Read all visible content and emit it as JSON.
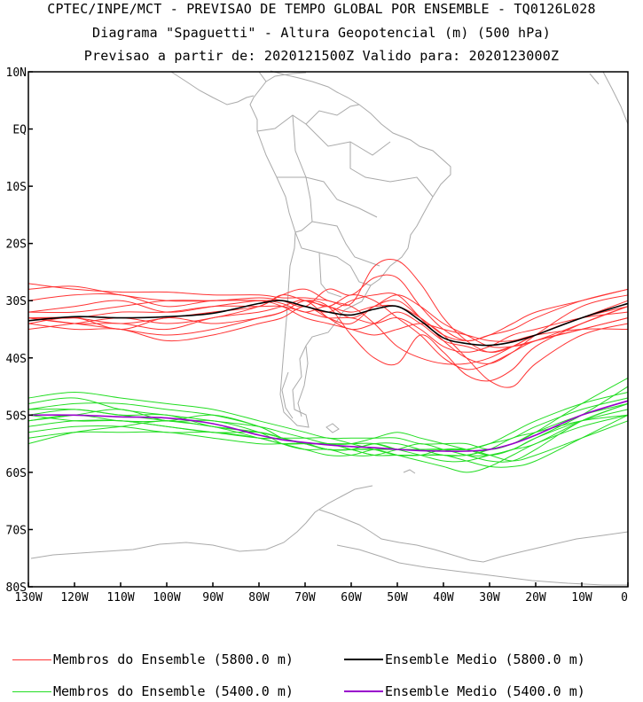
{
  "titles": {
    "line1": "CPTEC/INPE/MCT - PREVISAO DE TEMPO GLOBAL POR ENSEMBLE - TQ0126L028",
    "line2": "Diagrama \"Spaguetti\" - Altura Geopotencial (m) (500 hPa)",
    "line3": "Previsao a partir de: 2020121500Z  Valido para: 2020123000Z"
  },
  "axes": {
    "lon_labels": [
      "130W",
      "120W",
      "110W",
      "100W",
      "90W",
      "80W",
      "70W",
      "60W",
      "50W",
      "40W",
      "30W",
      "20W",
      "10W",
      "0"
    ],
    "lat_labels": [
      "10N",
      "EQ",
      "10S",
      "20S",
      "30S",
      "40S",
      "50S",
      "60S",
      "70S",
      "80S"
    ],
    "lon_range": [
      -130,
      0
    ],
    "lat_range": [
      -80,
      10
    ]
  },
  "colors": {
    "members_5800": "#ff3333",
    "mean_5800": "#000000",
    "members_5400": "#22dd22",
    "mean_5400": "#9900cc",
    "coast": "#aaaaaa"
  },
  "legend": {
    "members_5800": "Membros do Ensemble (5800.0 m)",
    "mean_5800": "Ensemble Medio (5800.0 m)",
    "members_5400": "Membros do Ensemble (5400.0 m)",
    "mean_5400": "Ensemble Medio (5400.0 m)"
  },
  "chart_data": {
    "type": "line",
    "lon_points": [
      -130,
      -120,
      -110,
      -100,
      -90,
      -80,
      -75,
      -70,
      -65,
      -60,
      -55,
      -50,
      -45,
      -40,
      -35,
      -30,
      -25,
      -20,
      -10,
      0
    ],
    "mean_5800": [
      -33.5,
      -32.8,
      -33,
      -32.8,
      -32.2,
      -30.5,
      -30,
      -31,
      -32,
      -32.5,
      -31.5,
      -31,
      -33.5,
      -36.5,
      -37.5,
      -37.8,
      -37.2,
      -36,
      -33,
      -30.5
    ],
    "mean_5400": [
      -50,
      -50,
      -50.3,
      -50.5,
      -51.5,
      -53.5,
      -54.3,
      -54.8,
      -55.2,
      -55.5,
      -55.7,
      -56,
      -56.2,
      -56.3,
      -56.3,
      -56,
      -55,
      -53.5,
      -50,
      -47.5
    ],
    "members_5800": [
      [
        -27,
        -28,
        -28.5,
        -28.5,
        -29,
        -29,
        -29.5,
        -29.5,
        -30,
        -30.5,
        -24,
        -23,
        -27,
        -33,
        -37,
        -39,
        -38,
        -36,
        -33,
        -30
      ],
      [
        -28,
        -27.5,
        -29,
        -30,
        -30,
        -29.5,
        -30,
        -31,
        -28,
        -29,
        -26,
        -26,
        -31,
        -35,
        -37,
        -36,
        -35,
        -33,
        -30,
        -28
      ],
      [
        -30,
        -29,
        -29,
        -31,
        -30,
        -30,
        -30,
        -31,
        -32,
        -30,
        -29,
        -29,
        -33,
        -37,
        -40,
        -41,
        -39,
        -36,
        -31,
        -29
      ],
      [
        -32,
        -31,
        -30,
        -32,
        -31,
        -30,
        -30.5,
        -32,
        -31,
        -33,
        -31,
        -29,
        -31,
        -34,
        -36,
        -38,
        -38,
        -37,
        -34,
        -31
      ],
      [
        -33,
        -33,
        -32,
        -32,
        -31,
        -31,
        -31,
        -32,
        -33,
        -33,
        -34,
        -33,
        -35,
        -38,
        -39,
        -38,
        -36,
        -35,
        -33,
        -32
      ],
      [
        -33,
        -34,
        -34,
        -35,
        -33,
        -32,
        -31,
        -30,
        -33,
        -35,
        -34,
        -32,
        -34,
        -37,
        -38,
        -39,
        -38,
        -37,
        -35,
        -33
      ],
      [
        -34,
        -33,
        -35,
        -33,
        -34,
        -33,
        -32,
        -30,
        -31,
        -36,
        -40,
        -41,
        -36,
        -39,
        -43,
        -44,
        -42,
        -38,
        -34,
        -31
      ],
      [
        -35,
        -34,
        -33,
        -34,
        -33,
        -31,
        -29,
        -28,
        -30,
        -31,
        -34,
        -38,
        -40,
        -41,
        -41,
        -40,
        -38,
        -36,
        -33,
        -31
      ],
      [
        -33,
        -34,
        -35,
        -36,
        -35,
        -33,
        -32,
        -30,
        -31,
        -29,
        -30,
        -33,
        -36,
        -40,
        -42,
        -41,
        -39,
        -37,
        -35,
        -33
      ],
      [
        -34,
        -35,
        -35,
        -37,
        -36,
        -34,
        -33,
        -31,
        -33,
        -34,
        -31,
        -30,
        -33,
        -36,
        -40,
        -44,
        -45,
        -41,
        -36,
        -34
      ],
      [
        -32,
        -32,
        -31,
        -30,
        -30,
        -30,
        -31,
        -33,
        -34,
        -35,
        -36,
        -35,
        -34,
        -35,
        -36,
        -37,
        -37,
        -36,
        -35,
        -35
      ],
      [
        -33,
        -33,
        -34,
        -33,
        -32,
        -31,
        -29,
        -30,
        -31,
        -32,
        -31,
        -31,
        -33,
        -36,
        -37,
        -36,
        -34,
        -32,
        -30,
        -28
      ]
    ],
    "members_5400": [
      [
        -47,
        -46,
        -47,
        -48,
        -49,
        -51,
        -52,
        -53,
        -54,
        -54,
        -54,
        -54,
        -55,
        -55,
        -55,
        -56,
        -55,
        -53,
        -48,
        -43.5
      ],
      [
        -48,
        -47,
        -49,
        -50,
        -51,
        -52,
        -53,
        -54,
        -55,
        -55,
        -54,
        -53,
        -54,
        -55,
        -56,
        -57,
        -56,
        -54,
        -50,
        -45
      ],
      [
        -49,
        -48,
        -48,
        -49,
        -50,
        -52,
        -54,
        -55,
        -56,
        -56,
        -56,
        -56,
        -56,
        -56,
        -57,
        -57,
        -56,
        -55,
        -51,
        -48
      ],
      [
        -50,
        -49,
        -50,
        -50,
        -52,
        -53,
        -54,
        -55,
        -55,
        -55,
        -55,
        -56,
        -56,
        -56,
        -56,
        -55,
        -54,
        -52,
        -49,
        -47
      ],
      [
        -51,
        -50,
        -49,
        -51,
        -51,
        -53,
        -55,
        -56,
        -56,
        -57,
        -57,
        -56,
        -55,
        -56,
        -57,
        -58,
        -58,
        -56,
        -51,
        -48
      ],
      [
        -50,
        -51,
        -51,
        -52,
        -53,
        -54,
        -54,
        -54,
        -54,
        -55,
        -56,
        -57,
        -57,
        -57,
        -58,
        -59,
        -59,
        -58,
        -54,
        -50
      ],
      [
        -52,
        -51,
        -51,
        -52,
        -53,
        -53,
        -54,
        -55,
        -56,
        -56,
        -55,
        -56,
        -57,
        -58,
        -58,
        -57,
        -56,
        -54,
        -51,
        -49
      ],
      [
        -53,
        -52,
        -52,
        -53,
        -53,
        -54,
        -55,
        -55,
        -55,
        -56,
        -57,
        -57,
        -57,
        -57,
        -57,
        -56,
        -54,
        -53,
        -51,
        -50
      ],
      [
        -54,
        -53,
        -53,
        -53,
        -54,
        -55,
        -55,
        -55,
        -56,
        -56,
        -56,
        -57,
        -58,
        -59,
        -60,
        -59,
        -57,
        -55,
        -52,
        -50
      ],
      [
        -55,
        -53,
        -52,
        -51,
        -52,
        -53,
        -54,
        -55,
        -55,
        -56,
        -57,
        -57,
        -57,
        -56,
        -56,
        -57,
        -58,
        -57,
        -54,
        -51
      ],
      [
        -51,
        -50,
        -51,
        -51,
        -50,
        -52,
        -54,
        -55,
        -56,
        -56,
        -55,
        -55,
        -56,
        -57,
        -57,
        -56,
        -55,
        -53,
        -50,
        -48
      ],
      [
        -49,
        -49,
        -50,
        -51,
        -52,
        -54,
        -55,
        -56,
        -57,
        -57,
        -56,
        -56,
        -56,
        -56,
        -56,
        -55,
        -53,
        -51,
        -48,
        -46
      ]
    ]
  }
}
